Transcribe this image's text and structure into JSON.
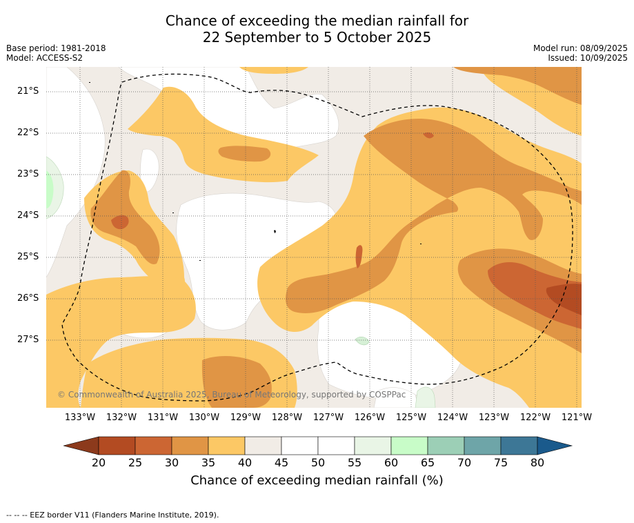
{
  "title_line1": "Chance of exceeding the median rainfall for",
  "title_line2": "22 September to 5 October 2025",
  "base_period": "Base period: 1981-2018",
  "model": "Model: ACCESS-S2",
  "model_run": "Model run: 08/09/2025",
  "issued": "Issued: 10/09/2025",
  "copyright": "© Commonwealth of Australia 2025, Bureau of Meteorology, supported by COSPPac",
  "latitudes": [
    "21°S",
    "22°S",
    "23°S",
    "24°S",
    "25°S",
    "26°S",
    "27°S"
  ],
  "longitudes": [
    "133°W",
    "132°W",
    "131°W",
    "130°W",
    "129°W",
    "128°W",
    "127°W",
    "126°W",
    "125°W",
    "124°W",
    "123°W",
    "122°W",
    "121°W"
  ],
  "colorbar_ticks": [
    "20",
    "25",
    "30",
    "35",
    "40",
    "45",
    "50",
    "55",
    "60",
    "65",
    "70",
    "75",
    "80"
  ],
  "colorbar_label": "Chance of exceeding median rainfall (%)",
  "footer": "--  --  -- EEZ border V11 (Flanders Marine Institute, 2019).",
  "legend_colors": {
    "lt20": "#8c3a1c",
    "20-25": "#b34b22",
    "25-30": "#cc6633",
    "30-35": "#e09545",
    "35-40": "#fcc865",
    "40-45": "#f1ece6",
    "45-50": "#ffffff",
    "50-55": "#ffffff",
    "55-60": "#e9f5e6",
    "60-65": "#c8fcc8",
    "65-70": "#9ccfb6",
    "70-75": "#6ea5a8",
    "75-80": "#3d7796",
    "gt80": "#1a5a8c"
  }
}
